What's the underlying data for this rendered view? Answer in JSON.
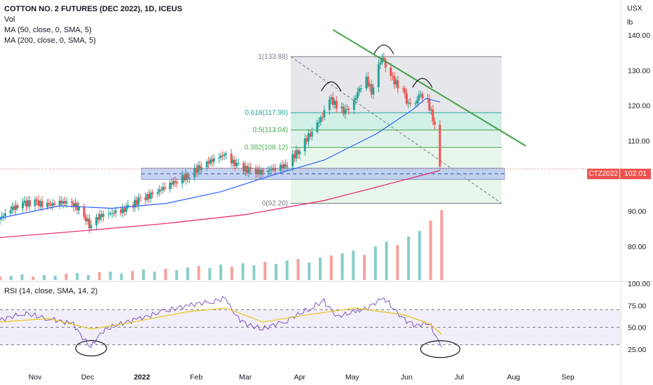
{
  "legend": {
    "title": "COTTON NO. 2 FUTURES (DEC 2022), 1D, ICEUS",
    "vol": "Vol",
    "ma50": "MA (50, close, 0, SMA, 5)",
    "ma200": "MA (200, close, 0, SMA, 5)",
    "rsi": "RSI (14, close, SMA, 14, 2)"
  },
  "units": {
    "currency": "USX",
    "unit": "lb"
  },
  "badges": {
    "symbol": "CTZ2022",
    "last_price": "102.01"
  },
  "colors": {
    "up": "#26a69a",
    "down": "#ef5350",
    "ma50": "#2962ff",
    "ma200": "#e91e63",
    "trendline": "#43a047",
    "rsi": "#7e57c2",
    "rsi_ma": "#e6c619",
    "fib_band_top": "#e0e3e6",
    "fib_band_mid": "#c8ece3",
    "fib_band_low": "#e3f3e6",
    "zone": "#aec3ef"
  },
  "chart_data": [
    {
      "type": "candlestick",
      "title": "COTTON NO. 2 FUTURES (DEC 2022), 1D, ICEUS",
      "x_ticks": [
        "Nov",
        "Dec",
        "2022",
        "Feb",
        "Mar",
        "Apr",
        "May",
        "Jun",
        "Jul",
        "Aug",
        "Sep"
      ],
      "y_ticks": [
        "140.00",
        "130.00",
        "120.00",
        "110.00",
        "100.00",
        "90.00",
        "80.00"
      ],
      "ylim": [
        76,
        143
      ],
      "price_path": [
        [
          "2021-10-12",
          87.5
        ],
        [
          "2021-10-19",
          90.5
        ],
        [
          "2021-10-26",
          92.0
        ],
        [
          "2021-11-02",
          92.5
        ],
        [
          "2021-11-09",
          91.5
        ],
        [
          "2021-11-16",
          92.5
        ],
        [
          "2021-11-23",
          92.5
        ],
        [
          "2021-11-30",
          89.0
        ],
        [
          "2021-12-03",
          86.0
        ],
        [
          "2021-12-10",
          89.0
        ],
        [
          "2021-12-17",
          89.5
        ],
        [
          "2021-12-24",
          90.5
        ],
        [
          "2021-12-31",
          93.0
        ],
        [
          "2022-01-07",
          94.5
        ],
        [
          "2022-01-14",
          96.5
        ],
        [
          "2022-01-21",
          98.5
        ],
        [
          "2022-01-28",
          100.0
        ],
        [
          "2022-02-04",
          102.5
        ],
        [
          "2022-02-11",
          104.5
        ],
        [
          "2022-02-18",
          106.0
        ],
        [
          "2022-02-25",
          103.0
        ],
        [
          "2022-03-04",
          101.5
        ],
        [
          "2022-03-11",
          101.0
        ],
        [
          "2022-03-18",
          102.0
        ],
        [
          "2022-03-25",
          103.0
        ],
        [
          "2022-04-01",
          107.0
        ],
        [
          "2022-04-08",
          112.0
        ],
        [
          "2022-04-15",
          117.0
        ],
        [
          "2022-04-19",
          122.0
        ],
        [
          "2022-04-23",
          120.0
        ],
        [
          "2022-04-28",
          118.0
        ],
        [
          "2022-05-03",
          121.0
        ],
        [
          "2022-05-06",
          125.0
        ],
        [
          "2022-05-10",
          127.5
        ],
        [
          "2022-05-13",
          124.0
        ],
        [
          "2022-05-17",
          131.0
        ],
        [
          "2022-05-19",
          133.5
        ],
        [
          "2022-05-24",
          128.0
        ],
        [
          "2022-05-31",
          124.0
        ],
        [
          "2022-06-03",
          120.0
        ],
        [
          "2022-06-07",
          121.0
        ],
        [
          "2022-06-10",
          123.5
        ],
        [
          "2022-06-14",
          121.0
        ],
        [
          "2022-06-16",
          118.0
        ],
        [
          "2022-06-18",
          114.0
        ],
        [
          "2022-06-20",
          107.0
        ],
        [
          "2022-06-21",
          102.0
        ]
      ],
      "ma50": [
        [
          "2021-10-12",
          88.0
        ],
        [
          "2021-11-15",
          91.5
        ],
        [
          "2021-12-15",
          90.8
        ],
        [
          "2022-01-15",
          92.2
        ],
        [
          "2022-02-15",
          95.5
        ],
        [
          "2022-03-15",
          100.0
        ],
        [
          "2022-04-15",
          104.5
        ],
        [
          "2022-05-15",
          112.0
        ],
        [
          "2022-06-05",
          119.0
        ],
        [
          "2022-06-12",
          122.0
        ],
        [
          "2022-06-20",
          121.0
        ]
      ],
      "ma200": [
        [
          "2021-10-12",
          82.5
        ],
        [
          "2021-12-01",
          84.5
        ],
        [
          "2022-01-15",
          86.5
        ],
        [
          "2022-03-01",
          89.0
        ],
        [
          "2022-04-15",
          93.0
        ],
        [
          "2022-05-20",
          97.5
        ],
        [
          "2022-06-20",
          101.5
        ]
      ],
      "fibonacci_retracement": {
        "high": 133.88,
        "low": 92.2,
        "levels": [
          {
            "label": "1(133.88)",
            "value": 133.88
          },
          {
            "label": "0.618(117.96)",
            "value": 117.96
          },
          {
            "label": "0.5(113.04)",
            "value": 113.04
          },
          {
            "label": "0.382(108.12)",
            "value": 108.12
          },
          {
            "label": "0(92.20)",
            "value": 92.2
          }
        ]
      },
      "support_zone": [
        99.0,
        102.2
      ],
      "trendline": [
        [
          "2022-04-20",
          141.5
        ],
        [
          "2022-08-08",
          108.5
        ]
      ],
      "last_price": 102.01
    },
    {
      "type": "bar",
      "title": "Vol",
      "note": "volume histogram, relative heights (0-1)",
      "values": [
        0.05,
        0.06,
        0.08,
        0.05,
        0.07,
        0.06,
        0.09,
        0.1,
        0.07,
        0.11,
        0.12,
        0.09,
        0.13,
        0.15,
        0.12,
        0.16,
        0.14,
        0.18,
        0.2,
        0.17,
        0.22,
        0.19,
        0.24,
        0.21,
        0.26,
        0.23,
        0.28,
        0.3,
        0.25,
        0.32,
        0.35,
        0.38,
        0.42,
        0.36,
        0.48,
        0.55,
        0.5,
        0.62,
        0.7,
        0.85,
        1.0
      ]
    },
    {
      "type": "line",
      "title": "RSI (14, close, SMA, 14, 2)",
      "y_ticks": [
        "100.00",
        "75.00",
        "50.00",
        "25.00"
      ],
      "ylim": [
        0,
        100
      ],
      "bands": [
        30,
        50,
        70
      ],
      "rsi": [
        [
          "2021-10-12",
          58
        ],
        [
          "2021-10-26",
          66
        ],
        [
          "2021-11-09",
          60
        ],
        [
          "2021-11-23",
          54
        ],
        [
          "2021-11-30",
          34
        ],
        [
          "2021-12-03",
          27
        ],
        [
          "2021-12-10",
          46
        ],
        [
          "2021-12-17",
          52
        ],
        [
          "2021-12-31",
          60
        ],
        [
          "2022-01-14",
          68
        ],
        [
          "2022-01-28",
          75
        ],
        [
          "2022-02-11",
          80
        ],
        [
          "2022-02-18",
          83
        ],
        [
          "2022-02-25",
          60
        ],
        [
          "2022-03-04",
          52
        ],
        [
          "2022-03-11",
          48
        ],
        [
          "2022-03-25",
          58
        ],
        [
          "2022-04-08",
          72
        ],
        [
          "2022-04-15",
          80
        ],
        [
          "2022-04-23",
          62
        ],
        [
          "2022-05-03",
          68
        ],
        [
          "2022-05-10",
          72
        ],
        [
          "2022-05-19",
          84
        ],
        [
          "2022-05-31",
          58
        ],
        [
          "2022-06-07",
          52
        ],
        [
          "2022-06-14",
          55
        ],
        [
          "2022-06-18",
          42
        ],
        [
          "2022-06-21",
          27
        ]
      ],
      "rsi_ma": [
        [
          "2021-10-12",
          56
        ],
        [
          "2021-11-09",
          60
        ],
        [
          "2021-12-03",
          48
        ],
        [
          "2021-12-24",
          55
        ],
        [
          "2022-01-28",
          68
        ],
        [
          "2022-02-18",
          72
        ],
        [
          "2022-03-11",
          56
        ],
        [
          "2022-04-08",
          65
        ],
        [
          "2022-05-03",
          72
        ],
        [
          "2022-05-31",
          64
        ],
        [
          "2022-06-14",
          54
        ],
        [
          "2022-06-21",
          42
        ]
      ]
    }
  ]
}
